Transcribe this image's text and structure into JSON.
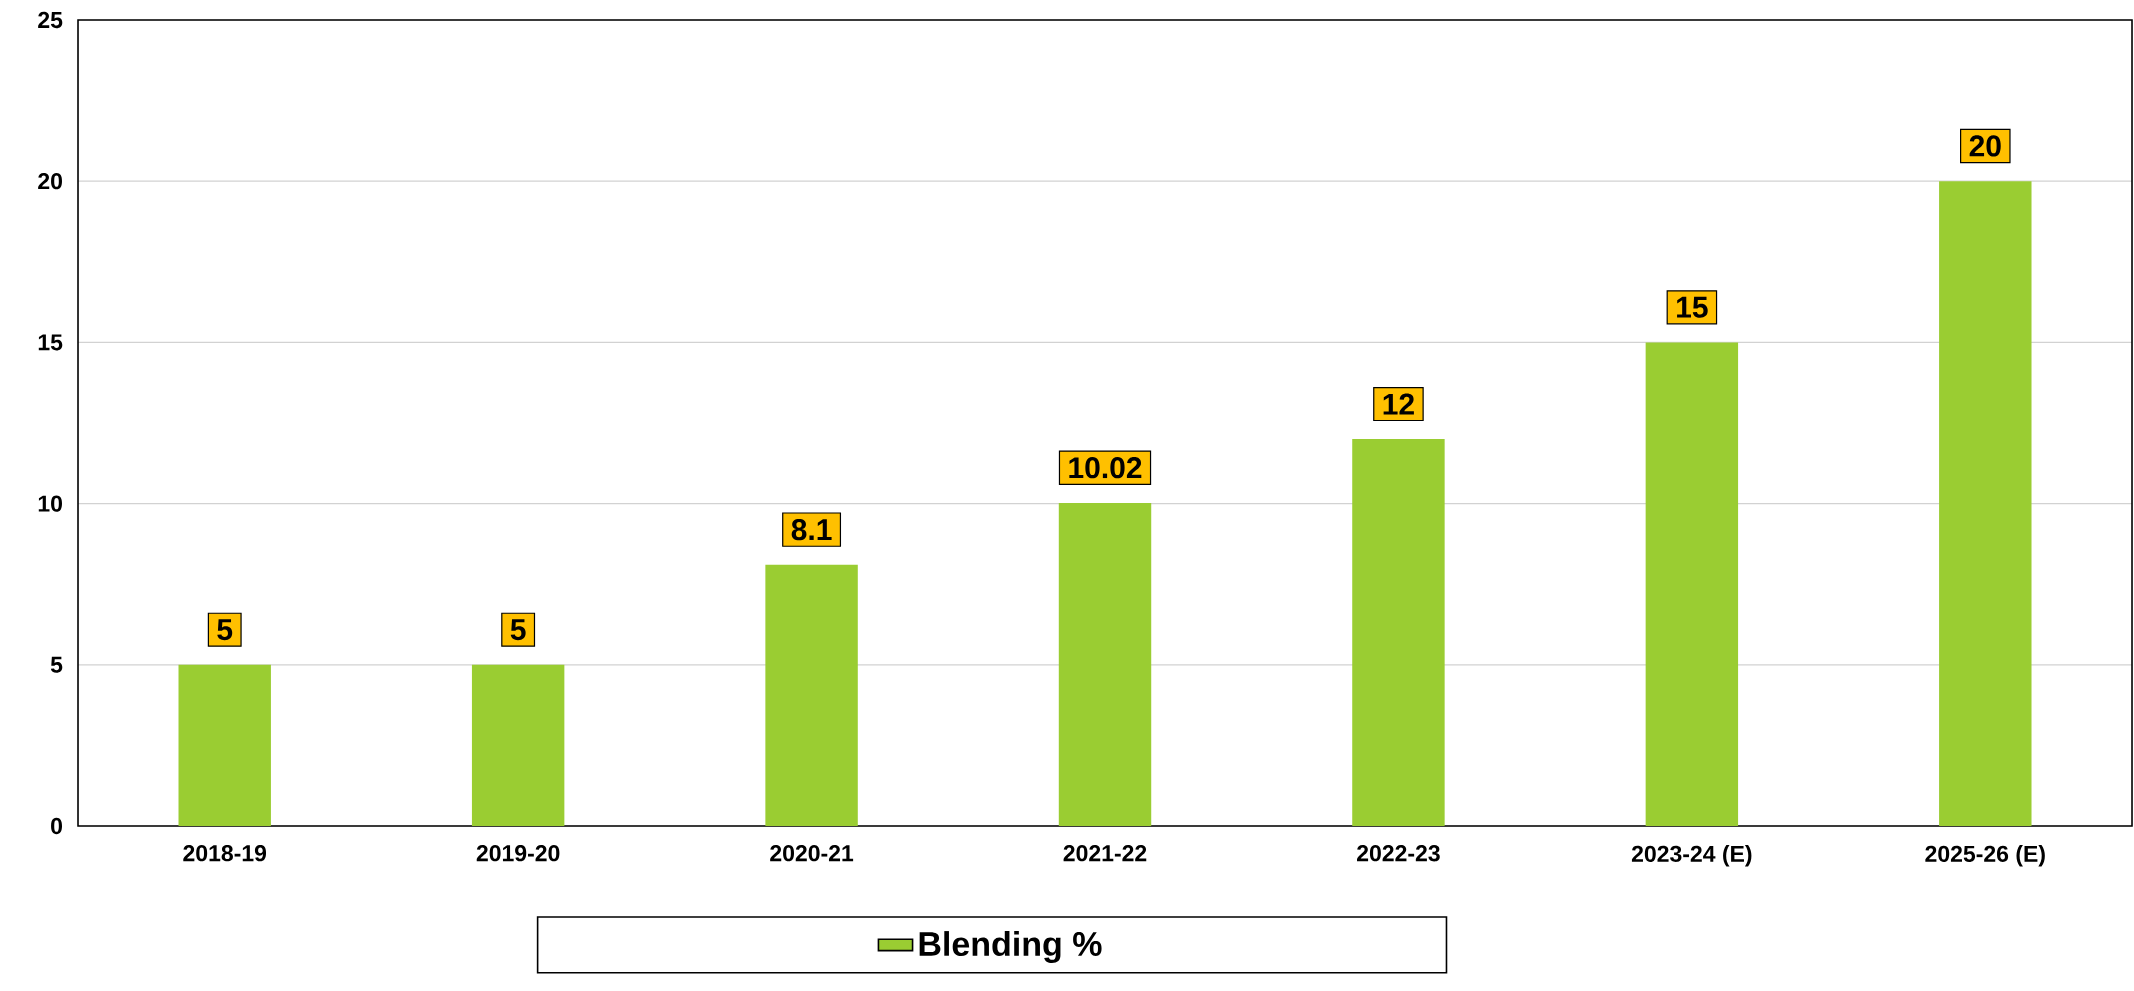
{
  "chart_data": {
    "type": "bar",
    "categories": [
      "2018-19",
      "2019-20",
      "2020-21",
      "2021-22",
      "2022-23",
      "2023-24 (E)",
      "2025-26 (E)"
    ],
    "series": [
      {
        "name": "Blending %",
        "color": "#9acd32",
        "values": [
          5,
          5,
          8.1,
          10.02,
          12,
          15,
          20
        ]
      }
    ],
    "ylim": [
      0,
      25
    ],
    "yticks": [
      0,
      5,
      10,
      15,
      20,
      25
    ],
    "grid": "y",
    "legend": "bottom",
    "data_labels": true
  }
}
